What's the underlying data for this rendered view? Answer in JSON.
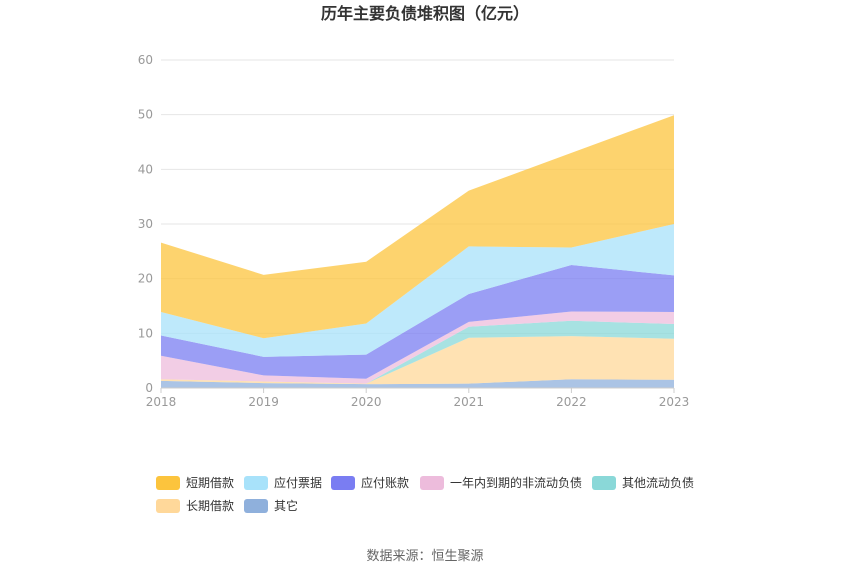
{
  "chart_data": {
    "type": "area",
    "stacked": true,
    "title": "历年主要负债堆积图（亿元）",
    "x": [
      "2018",
      "2019",
      "2020",
      "2021",
      "2022",
      "2023"
    ],
    "ylim": [
      0,
      60
    ],
    "yticks": [
      0,
      10,
      20,
      30,
      40,
      50,
      60
    ],
    "grid": true,
    "legend_position": "bottom",
    "series": [
      {
        "name": "其它",
        "color": "#8fb0dc",
        "values": [
          1.3,
          0.9,
          0.7,
          0.8,
          1.6,
          1.5
        ]
      },
      {
        "name": "长期借款",
        "color": "#ffd89a",
        "values": [
          0.3,
          0.3,
          0.1,
          8.4,
          7.9,
          7.5
        ]
      },
      {
        "name": "其他流动负债",
        "color": "#8ad8d8",
        "values": [
          0.0,
          0.0,
          0.0,
          2.0,
          2.8,
          2.7
        ]
      },
      {
        "name": "一年内到期的非流动负债",
        "color": "#edbcdc",
        "values": [
          4.3,
          1.1,
          0.9,
          0.9,
          1.7,
          2.2
        ]
      },
      {
        "name": "应付账款",
        "color": "#7a7df2",
        "values": [
          3.7,
          3.4,
          4.4,
          5.1,
          8.5,
          6.7
        ]
      },
      {
        "name": "应付票据",
        "color": "#a8e2fa",
        "values": [
          4.3,
          3.4,
          5.7,
          8.7,
          3.2,
          9.4
        ]
      },
      {
        "name": "短期借款",
        "color": "#fcc43d",
        "values": [
          12.7,
          11.6,
          11.3,
          10.2,
          17.3,
          19.9
        ]
      }
    ],
    "legend_order": [
      "短期借款",
      "应付票据",
      "应付账款",
      "一年内到期的非流动负债",
      "其他流动负债",
      "长期借款",
      "其它"
    ]
  },
  "source": "数据来源：恒生聚源"
}
